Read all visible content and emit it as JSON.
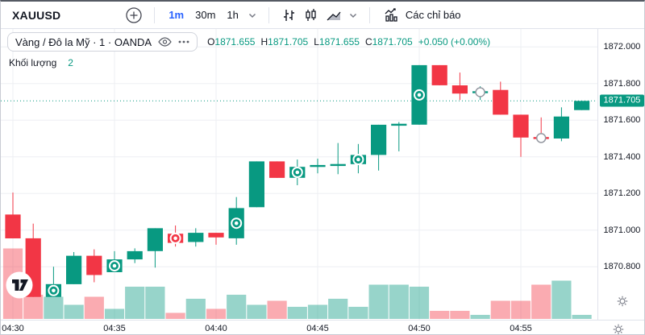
{
  "toolbar": {
    "symbol": "XAUUSD",
    "intervals": [
      "1m",
      "30m",
      "1h"
    ],
    "active_interval": "1m",
    "indicators_label": "Các chỉ báo"
  },
  "legend": {
    "symbol_title": "Vàng / Đô la Mỹ · 1 · OANDA",
    "ohlc": [
      {
        "label": "O",
        "value": "1871.655"
      },
      {
        "label": "H",
        "value": "1871.705"
      },
      {
        "label": "L",
        "value": "1871.655"
      },
      {
        "label": "C",
        "value": "1871.705"
      }
    ],
    "change": "+0.050 (+0.00%)",
    "volume_label": "Khối lượng",
    "volume_value": "2"
  },
  "price_axis": {
    "ticks": [
      "1872.000",
      "1871.800",
      "1871.600",
      "1871.400",
      "1871.200",
      "1871.000",
      "1870.800"
    ],
    "last_price_label": "1871.705"
  },
  "chart_data": {
    "type": "candlestick",
    "symbol": "XAUUSD",
    "exchange": "OANDA",
    "interval": "1m",
    "title": "Vàng / Đô la Mỹ · 1 · OANDA",
    "y_range": [
      1870.55,
      1872.08
    ],
    "grid": true,
    "last_price": 1871.705,
    "price_ticks": [
      1872.0,
      1871.8,
      1871.6,
      1871.4,
      1871.2,
      1871.0,
      1870.8
    ],
    "time_tick_labels": [
      "04:30",
      "04:35",
      "04:40",
      "04:45",
      "04:50",
      "04:55"
    ],
    "time_tick_indices": [
      0,
      5,
      10,
      15,
      20,
      25
    ],
    "colors": {
      "up": "#089981",
      "down": "#F23645",
      "grid": "#edeff3",
      "volume_opacity": 0.42,
      "accent_blue": "#2962ff"
    },
    "candles": [
      {
        "t": "04:30",
        "o": 1871.085,
        "h": 1871.205,
        "l": 1870.955,
        "c": 1870.955,
        "v": 35
      },
      {
        "t": "04:31",
        "o": 1870.955,
        "h": 1871.035,
        "l": 1870.635,
        "c": 1870.635,
        "v": 12
      },
      {
        "t": "04:32",
        "o": 1870.635,
        "h": 1870.8,
        "l": 1870.635,
        "c": 1870.705,
        "v": 11,
        "m": "dot"
      },
      {
        "t": "04:33",
        "o": 1870.705,
        "h": 1870.88,
        "l": 1870.705,
        "c": 1870.86,
        "v": 7
      },
      {
        "t": "04:34",
        "o": 1870.86,
        "h": 1870.895,
        "l": 1870.715,
        "c": 1870.755,
        "v": 11
      },
      {
        "t": "04:35",
        "o": 1870.77,
        "h": 1870.885,
        "l": 1870.77,
        "c": 1870.84,
        "v": 5,
        "m": "dot"
      },
      {
        "t": "04:36",
        "o": 1870.84,
        "h": 1870.9,
        "l": 1870.82,
        "c": 1870.885,
        "v": 16
      },
      {
        "t": "04:37",
        "o": 1870.885,
        "h": 1871.01,
        "l": 1870.795,
        "c": 1871.01,
        "v": 16
      },
      {
        "t": "04:38",
        "o": 1870.98,
        "h": 1871.025,
        "l": 1870.91,
        "c": 1870.93,
        "v": 3,
        "m": "dot"
      },
      {
        "t": "04:39",
        "o": 1870.935,
        "h": 1871.01,
        "l": 1870.91,
        "c": 1870.985,
        "v": 10
      },
      {
        "t": "04:40",
        "o": 1870.985,
        "h": 1870.985,
        "l": 1870.92,
        "c": 1870.96,
        "v": 5
      },
      {
        "t": "04:41",
        "o": 1870.955,
        "h": 1871.18,
        "l": 1870.92,
        "c": 1871.12,
        "v": 12,
        "m": "dot"
      },
      {
        "t": "04:42",
        "o": 1871.125,
        "h": 1871.375,
        "l": 1871.125,
        "c": 1871.375,
        "v": 7
      },
      {
        "t": "04:43",
        "o": 1871.375,
        "h": 1871.375,
        "l": 1871.285,
        "c": 1871.285,
        "v": 9
      },
      {
        "t": "04:44",
        "o": 1871.285,
        "h": 1871.385,
        "l": 1871.245,
        "c": 1871.345,
        "v": 6,
        "m": "dot"
      },
      {
        "t": "04:45",
        "o": 1871.35,
        "h": 1871.39,
        "l": 1871.31,
        "c": 1871.35,
        "v": 7
      },
      {
        "t": "04:46",
        "o": 1871.35,
        "h": 1871.475,
        "l": 1871.305,
        "c": 1871.36,
        "v": 10
      },
      {
        "t": "04:47",
        "o": 1871.36,
        "h": 1871.47,
        "l": 1871.31,
        "c": 1871.41,
        "v": 6,
        "m": "dot"
      },
      {
        "t": "04:48",
        "o": 1871.41,
        "h": 1871.575,
        "l": 1871.325,
        "c": 1871.575,
        "v": 17
      },
      {
        "t": "04:49",
        "o": 1871.575,
        "h": 1871.59,
        "l": 1871.43,
        "c": 1871.575,
        "v": 17
      },
      {
        "t": "04:50",
        "o": 1871.575,
        "h": 1871.9,
        "l": 1871.575,
        "c": 1871.9,
        "v": 16,
        "m": "dot"
      },
      {
        "t": "04:51",
        "o": 1871.9,
        "h": 1871.9,
        "l": 1871.79,
        "c": 1871.79,
        "v": 4
      },
      {
        "t": "04:52",
        "o": 1871.79,
        "h": 1871.86,
        "l": 1871.71,
        "c": 1871.745,
        "v": 4
      },
      {
        "t": "04:53",
        "o": 1871.75,
        "h": 1871.785,
        "l": 1871.71,
        "c": 1871.755,
        "v": 2,
        "m": "ring"
      },
      {
        "t": "04:54",
        "o": 1871.765,
        "h": 1871.81,
        "l": 1871.63,
        "c": 1871.63,
        "v": 9
      },
      {
        "t": "04:55",
        "o": 1871.63,
        "h": 1871.63,
        "l": 1871.4,
        "c": 1871.505,
        "v": 9
      },
      {
        "t": "04:56",
        "o": 1871.505,
        "h": 1871.615,
        "l": 1871.485,
        "c": 1871.5,
        "v": 17,
        "m": "ring"
      },
      {
        "t": "04:57",
        "o": 1871.5,
        "h": 1871.67,
        "l": 1871.485,
        "c": 1871.62,
        "v": 19
      },
      {
        "t": "04:58",
        "o": 1871.655,
        "h": 1871.705,
        "l": 1871.655,
        "c": 1871.705,
        "v": 2
      }
    ]
  }
}
